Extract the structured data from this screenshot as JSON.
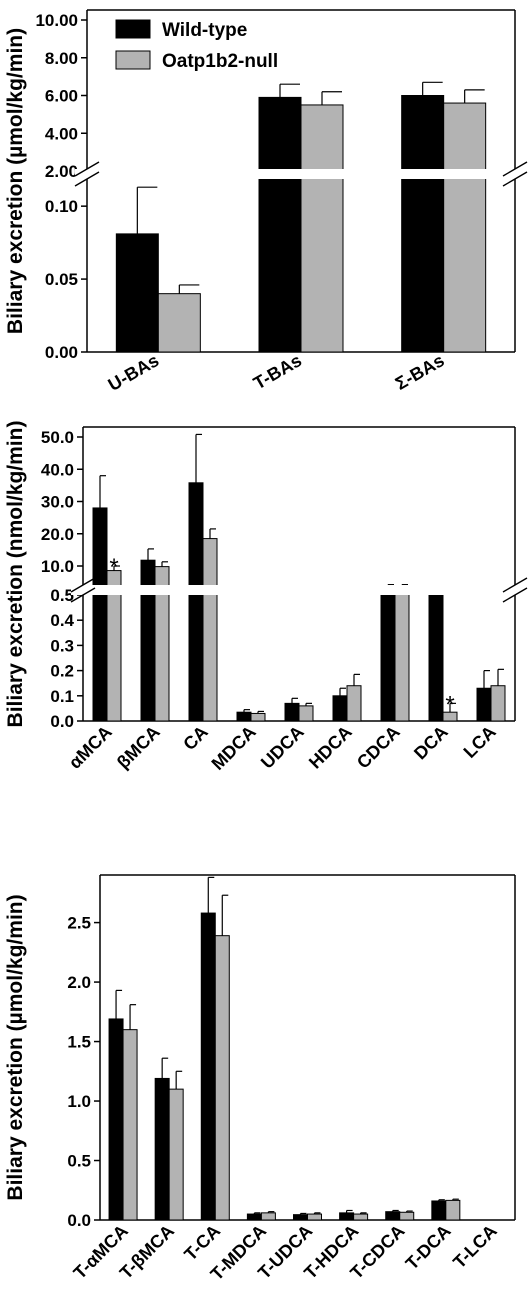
{
  "colors": {
    "wild_type": "#000000",
    "null": "#b3b3b3"
  },
  "chart_data": [
    {
      "type": "bar",
      "ylabel": "Biliary excretion (µmol/kg/min)",
      "categories": [
        "U-BAs",
        "T-BAs",
        "Σ-BAs"
      ],
      "series": [
        {
          "name": "Wild-type",
          "values": [
            0.081,
            5.9,
            6.0
          ],
          "errors": [
            0.032,
            0.7,
            0.7
          ]
        },
        {
          "name": "Oatp1b2-null",
          "values": [
            0.04,
            5.5,
            5.6
          ],
          "errors": [
            0.006,
            0.7,
            0.7
          ]
        }
      ],
      "axis_break": {
        "lower_range": [
          0,
          0.12
        ],
        "upper_range": [
          2,
          10
        ]
      },
      "yticks_lower": [
        "0.00",
        "0.05",
        "0.10"
      ],
      "yticks_upper": [
        "2.00",
        "4.00",
        "6.00",
        "8.00",
        "10.00"
      ],
      "legend": "top-left",
      "significance": []
    },
    {
      "type": "bar",
      "ylabel": "Biliary excretion (nmol/kg/min)",
      "categories": [
        "αMCA",
        "βMCA",
        "CA",
        "MDCA",
        "UDCA",
        "HDCA",
        "CDCA",
        "DCA",
        "LCA"
      ],
      "series": [
        {
          "name": "Wild-type",
          "values": [
            28,
            11.8,
            35.8,
            0.035,
            0.07,
            0.1,
            3.6,
            1.5,
            0.13
          ],
          "errors": [
            10,
            3.5,
            15,
            0.01,
            0.02,
            0.03,
            0.3,
            0.3,
            0.07
          ]
        },
        {
          "name": "Oatp1b2-null",
          "values": [
            8.5,
            9.8,
            18.5,
            0.03,
            0.06,
            0.14,
            3.6,
            0.035,
            0.14
          ],
          "errors": [
            1.5,
            1.5,
            3,
            0.008,
            0.01,
            0.045,
            0.3,
            0.035,
            0.065
          ]
        }
      ],
      "axis_break": {
        "lower_range": [
          0,
          0.5
        ],
        "upper_range": [
          0,
          50
        ]
      },
      "yticks_lower": [
        "0.0",
        "0.1",
        "0.2",
        "0.3",
        "0.4",
        "0.5"
      ],
      "yticks_upper": [
        "10.0",
        "20.0",
        "30.0",
        "40.0",
        "50.0"
      ],
      "significance": [
        {
          "category": "αMCA",
          "series": "Oatp1b2-null",
          "mark": "*"
        },
        {
          "category": "DCA",
          "series": "Oatp1b2-null",
          "mark": "*"
        }
      ]
    },
    {
      "type": "bar",
      "ylabel": "Biliary excretion (µmol/kg/min)",
      "categories": [
        "T-αMCA",
        "T-βMCA",
        "T-CA",
        "T-MDCA",
        "T-UDCA",
        "T-HDCA",
        "T-CDCA",
        "T-DCA",
        "T-LCA"
      ],
      "series": [
        {
          "name": "Wild-type",
          "values": [
            1.69,
            1.19,
            2.58,
            0.05,
            0.045,
            0.06,
            0.07,
            0.16,
            0
          ],
          "errors": [
            0.24,
            0.17,
            0.3,
            0.01,
            0.01,
            0.02,
            0.01,
            0.01,
            0
          ]
        },
        {
          "name": "Oatp1b2-null",
          "values": [
            1.6,
            1.1,
            2.39,
            0.06,
            0.05,
            0.05,
            0.065,
            0.165,
            0
          ],
          "errors": [
            0.21,
            0.15,
            0.34,
            0.01,
            0.01,
            0.01,
            0.01,
            0.01,
            0
          ]
        }
      ],
      "ylim": [
        0,
        2.9
      ],
      "yticks": [
        "0.0",
        "0.5",
        "1.0",
        "1.5",
        "2.0",
        "2.5"
      ],
      "significance": []
    }
  ]
}
